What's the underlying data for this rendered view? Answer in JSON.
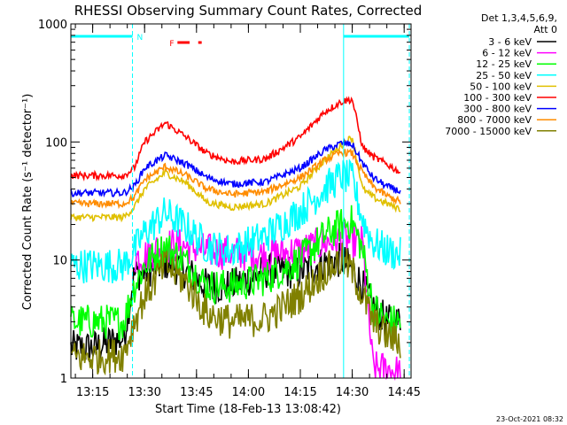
{
  "chart_data": {
    "type": "line",
    "title": "RHESSI Observing Summary Count Rates, Corrected",
    "xlabel": "Start Time (18-Feb-13 13:08:42)",
    "ylabel": "Corrected Count Rate (s⁻¹ detector⁻¹)",
    "y_scale": "log",
    "ylim": [
      1,
      1000
    ],
    "xlim": [
      "13:08:42",
      "14:47:00"
    ],
    "y_tick_labels": [
      "1",
      "10",
      "100",
      "1000"
    ],
    "x_tick_labels": [
      "13:15",
      "13:30",
      "13:45",
      "14:00",
      "14:15",
      "14:30",
      "14:45"
    ],
    "detector_info": [
      "Det 1,3,4,5,6,9,",
      "Att 0"
    ],
    "markers": {
      "night_label": "N",
      "flare_label": "F",
      "night_intervals": [
        [
          "13:08:42",
          "13:26:30"
        ],
        [
          "14:27:30",
          "14:46:30"
        ]
      ],
      "flare_intervals": [
        [
          "13:39:30",
          "13:43:00"
        ],
        [
          "13:45:30",
          "13:46:30"
        ]
      ],
      "marker_color": "#00ffff",
      "flare_color": "#ff0000"
    },
    "series": [
      {
        "name": "3 - 6 keV",
        "color": "#000000",
        "x": [
          "13:08:42",
          "13:15",
          "13:24",
          "13:27",
          "13:30",
          "13:36",
          "13:42",
          "13:48",
          "13:55",
          "14:05",
          "14:15",
          "14:22",
          "14:27",
          "14:30",
          "14:33",
          "14:36",
          "14:40",
          "14:44"
        ],
        "values": [
          1.8,
          1.8,
          2.2,
          7.5,
          8,
          9.5,
          8,
          6,
          6,
          8,
          8,
          9.5,
          10,
          8.5,
          6,
          4,
          3,
          3
        ]
      },
      {
        "name": "6 - 12 keV",
        "color": "#ff00ff",
        "x": [
          "13:27",
          "13:30",
          "13:36",
          "13:42",
          "13:48",
          "13:55",
          "14:05",
          "14:15",
          "14:22",
          "14:27",
          "14:30",
          "14:33",
          "14:36",
          "14:40",
          "14:44"
        ],
        "values": [
          10.5,
          11,
          13.5,
          13,
          12,
          11.5,
          11,
          12,
          14,
          15,
          14,
          14,
          1.2,
          1.2,
          1.1
        ]
      },
      {
        "name": "12 - 25 keV",
        "color": "#00ff00",
        "x": [
          "13:08:42",
          "13:15",
          "13:24",
          "13:27",
          "13:30",
          "13:36",
          "13:42",
          "13:48",
          "13:55",
          "14:05",
          "14:15",
          "14:22",
          "14:27",
          "14:30",
          "14:33",
          "14:36",
          "14:40",
          "14:44"
        ],
        "values": [
          3,
          3,
          3,
          6,
          9,
          13,
          9.5,
          6,
          6,
          7,
          10,
          16,
          20,
          21,
          12,
          4,
          3,
          3
        ]
      },
      {
        "name": "25 - 50 keV",
        "color": "#00ffff",
        "x": [
          "13:08:42",
          "13:15",
          "13:24",
          "13:27",
          "13:30",
          "13:36",
          "13:42",
          "13:48",
          "13:55",
          "14:05",
          "14:15",
          "14:22",
          "14:27",
          "14:30",
          "14:33",
          "14:36",
          "14:40",
          "14:44"
        ],
        "values": [
          9,
          9,
          9,
          12,
          17,
          25,
          19,
          13,
          12,
          16,
          26,
          40,
          52,
          48,
          22,
          14,
          12,
          11
        ]
      },
      {
        "name": "50 - 100 keV",
        "color": "#e0c000",
        "x": [
          "13:08:42",
          "13:15",
          "13:24",
          "13:27",
          "13:30",
          "13:36",
          "13:42",
          "13:48",
          "13:55",
          "14:05",
          "14:15",
          "14:22",
          "14:27",
          "14:30",
          "14:33",
          "14:36",
          "14:40",
          "14:44"
        ],
        "values": [
          23,
          23,
          23,
          28,
          40,
          55,
          45,
          31,
          28,
          30,
          42,
          70,
          95,
          110,
          40,
          34,
          30,
          27
        ]
      },
      {
        "name": "100 - 300 keV",
        "color": "#ff0000",
        "x": [
          "13:08:42",
          "13:15",
          "13:24",
          "13:27",
          "13:30",
          "13:36",
          "13:42",
          "13:48",
          "13:55",
          "14:05",
          "14:15",
          "14:22",
          "14:27",
          "14:30",
          "14:33",
          "14:36",
          "14:40",
          "14:44"
        ],
        "values": [
          52,
          52,
          52,
          60,
          100,
          145,
          110,
          80,
          68,
          72,
          110,
          180,
          220,
          230,
          90,
          75,
          65,
          55
        ]
      },
      {
        "name": "300 - 800 keV",
        "color": "#0000ff",
        "x": [
          "13:08:42",
          "13:15",
          "13:24",
          "13:27",
          "13:30",
          "13:36",
          "13:42",
          "13:48",
          "13:55",
          "14:05",
          "14:15",
          "14:22",
          "14:27",
          "14:30",
          "14:33",
          "14:36",
          "14:40",
          "14:44"
        ],
        "values": [
          37,
          37,
          37,
          42,
          60,
          77,
          65,
          50,
          44,
          46,
          60,
          85,
          98,
          95,
          66,
          50,
          42,
          38
        ]
      },
      {
        "name": "800 - 7000 keV",
        "color": "#ff8c00",
        "x": [
          "13:08:42",
          "13:15",
          "13:24",
          "13:27",
          "13:30",
          "13:36",
          "13:42",
          "13:48",
          "13:55",
          "14:05",
          "14:15",
          "14:22",
          "14:27",
          "14:30",
          "14:33",
          "14:36",
          "14:40",
          "14:44"
        ],
        "values": [
          30,
          30,
          30,
          34,
          48,
          62,
          52,
          40,
          36,
          38,
          50,
          70,
          82,
          80,
          55,
          42,
          35,
          31
        ]
      },
      {
        "name": "7000 - 15000 keV",
        "color": "#808000",
        "x": [
          "13:08:42",
          "13:15",
          "13:24",
          "13:27",
          "13:30",
          "13:36",
          "13:42",
          "13:48",
          "13:55",
          "14:05",
          "14:15",
          "14:22",
          "14:27",
          "14:30",
          "14:33",
          "14:36",
          "14:40",
          "14:44"
        ],
        "values": [
          1.5,
          1.5,
          1.6,
          3,
          5,
          9,
          6.5,
          3.5,
          3,
          3.2,
          5,
          8,
          10,
          8,
          5,
          3,
          2.3,
          2
        ]
      }
    ]
  },
  "footer": {
    "timestamp": "23-Oct-2021 08:32"
  }
}
